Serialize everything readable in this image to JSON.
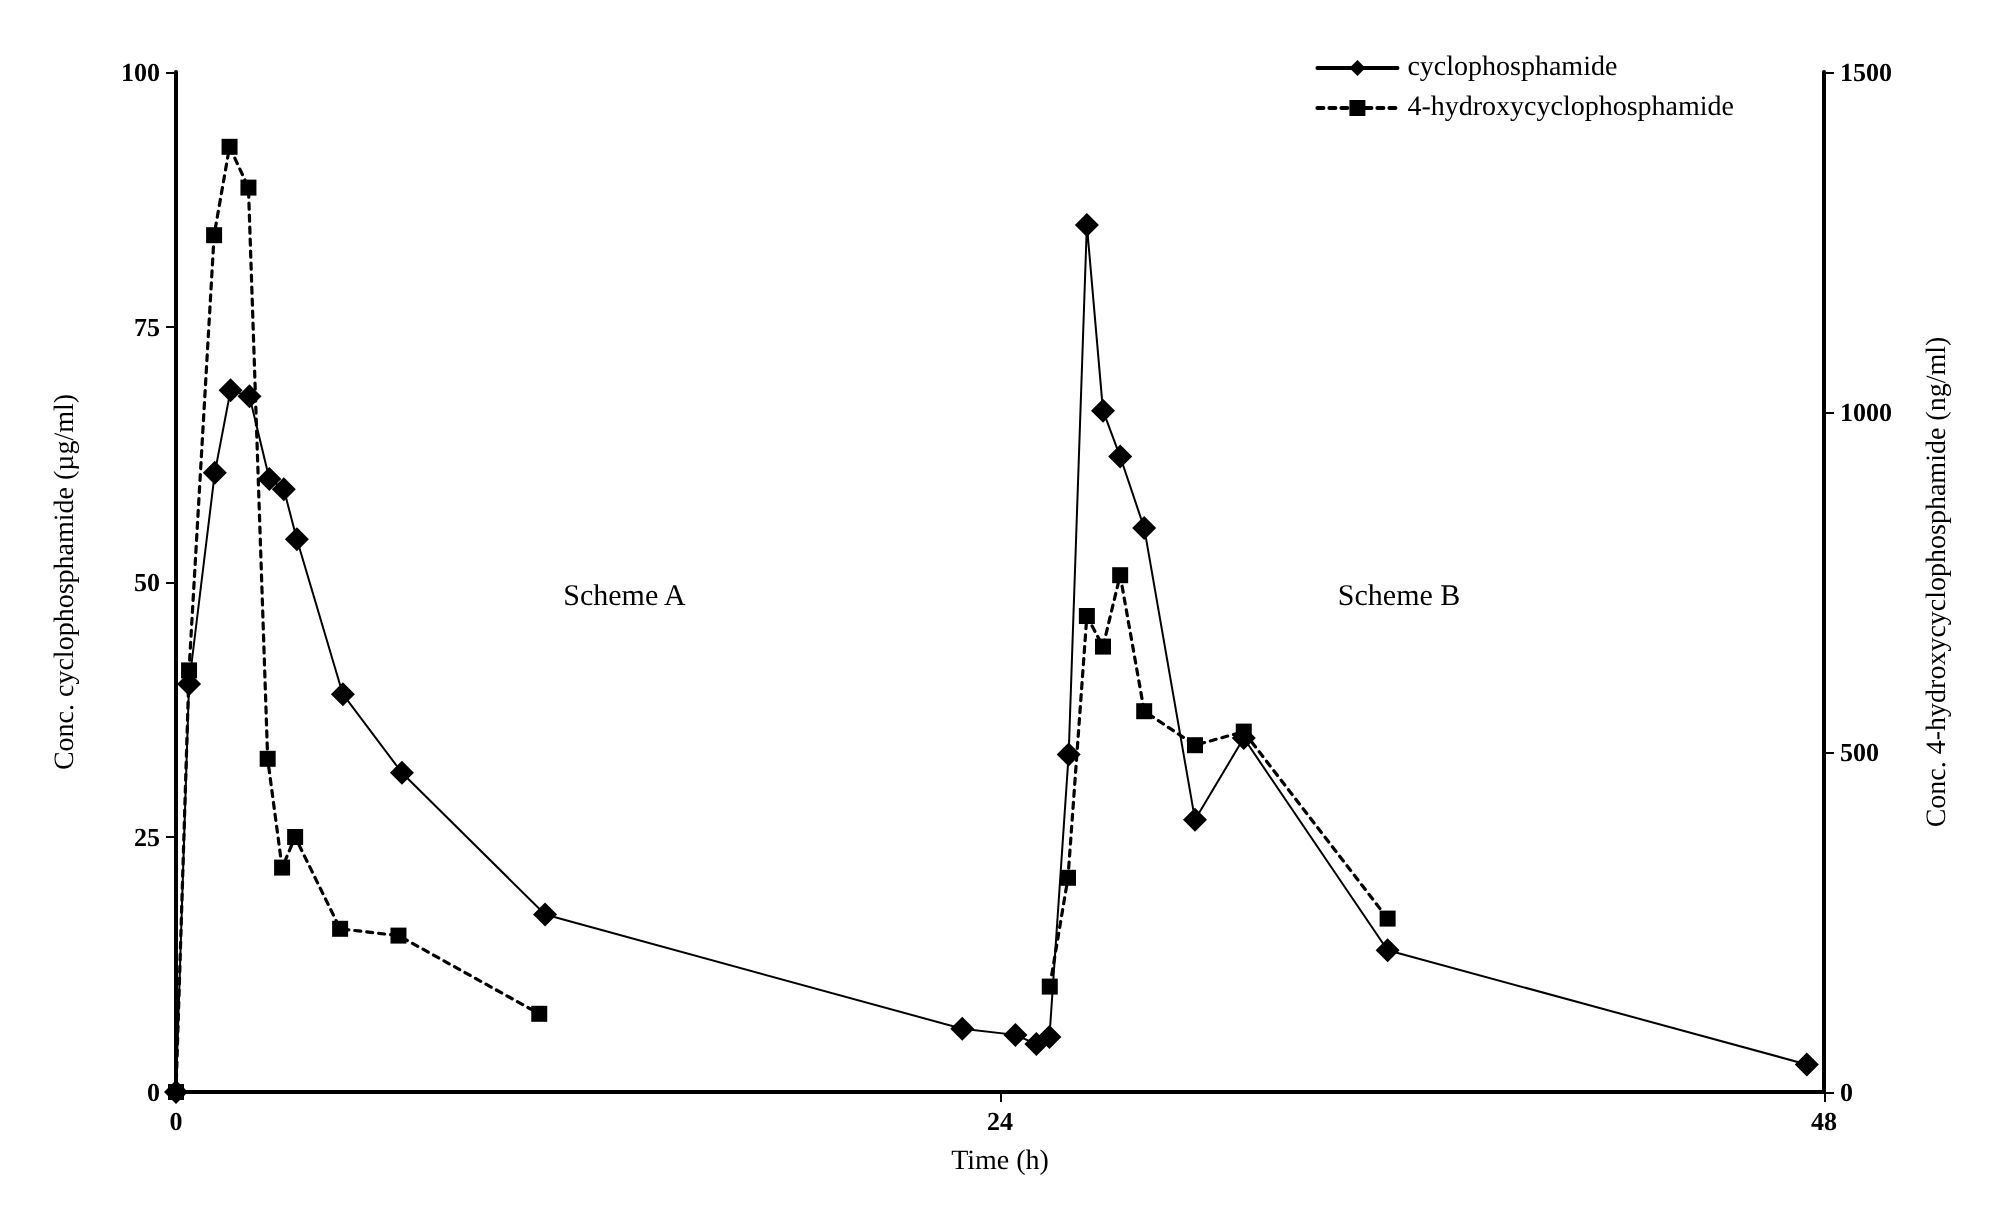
{
  "chart_data": {
    "type": "line",
    "xlabel": "Time (h)",
    "ylabel": "Conc. cyclophosphamide (µg/ml)",
    "y2label": "Conc. 4-hydroxycyclophosphamide (ng/ml)",
    "xlim": [
      0,
      48
    ],
    "xticks": [
      0,
      24,
      48
    ],
    "ylim": [
      0,
      100
    ],
    "yticks": [
      0,
      25,
      50,
      75,
      100
    ],
    "y2lim": [
      0,
      1500
    ],
    "y2ticks": [
      0,
      500,
      1000,
      1500
    ],
    "grid": false,
    "legend": "top right",
    "annotations": [
      "Scheme A",
      "Scheme B"
    ],
    "series": [
      {
        "name": "cyclophosphamide",
        "color": "#000000",
        "marker": "diamond",
        "line_style": "solid",
        "x": [
          0,
          0.38,
          1.13,
          1.59,
          2.14,
          2.72,
          3.14,
          3.52,
          4.86,
          6.58,
          10.75,
          22.9,
          24.45,
          25.06,
          25.44,
          26.0,
          26.53,
          27.0,
          27.5,
          28.2,
          29.68,
          31.1,
          35.29,
          47.5
        ],
        "values": [
          0,
          40,
          60.7,
          68.8,
          68.2,
          60.1,
          59.1,
          54.2,
          39,
          31.3,
          17.4,
          6.2,
          5.6,
          4.7,
          5.4,
          33.1,
          85,
          66.8,
          62.3,
          55.3,
          26.7,
          34.7,
          13.9,
          2.7
        ]
      },
      {
        "name": "4-hydroxycyclophosphamide",
        "color": "#000000",
        "marker": "square",
        "line_style": "dotted",
        "axis": "y2",
        "x": [
          0,
          0.38,
          1.11,
          1.56,
          2.11,
          2.67,
          3.09,
          3.47,
          4.78,
          6.48,
          10.58,
          18,
          25.45,
          25.98,
          26.53,
          27.0,
          27.5,
          28.2,
          29.68,
          31.1,
          35.29
        ],
        "values": [
          0,
          620,
          1260,
          1390,
          1330,
          490,
          330,
          375,
          240,
          230,
          115,
          null,
          155,
          315,
          700,
          655,
          760,
          560,
          510,
          530,
          255
        ]
      }
    ]
  }
}
